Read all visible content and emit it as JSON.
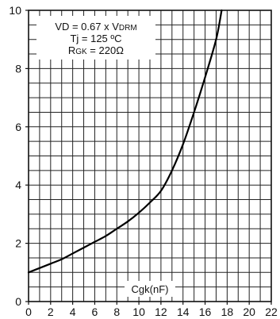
{
  "chart_data": {
    "type": "line",
    "title": "",
    "xlabel": "Cgk(nF)",
    "ylabel": "",
    "xlim": [
      0,
      22
    ],
    "ylim": [
      0,
      10
    ],
    "x_ticks": [
      0,
      2,
      4,
      6,
      8,
      10,
      12,
      14,
      16,
      18,
      20,
      22
    ],
    "y_ticks": [
      0,
      2,
      4,
      6,
      8,
      10
    ],
    "grid": true,
    "legend": "none",
    "annotation_lines": [
      {
        "main": "VD = 0.67 x V",
        "sub": "DRM"
      },
      {
        "main": "Tj  = 125 ºC",
        "sub": ""
      },
      {
        "main": "R",
        "sub": "GK",
        "tail": " = 220Ω"
      }
    ],
    "series": [
      {
        "color": "#000000",
        "x": [
          0,
          1,
          2,
          3,
          4,
          5,
          6,
          7,
          8,
          9,
          10,
          11,
          12,
          13,
          14,
          15,
          16,
          17,
          17.5
        ],
        "y": [
          1.0,
          1.15,
          1.3,
          1.45,
          1.65,
          1.85,
          2.05,
          2.25,
          2.5,
          2.75,
          3.05,
          3.4,
          3.8,
          4.5,
          5.4,
          6.5,
          7.7,
          9.0,
          10.0
        ]
      }
    ]
  }
}
